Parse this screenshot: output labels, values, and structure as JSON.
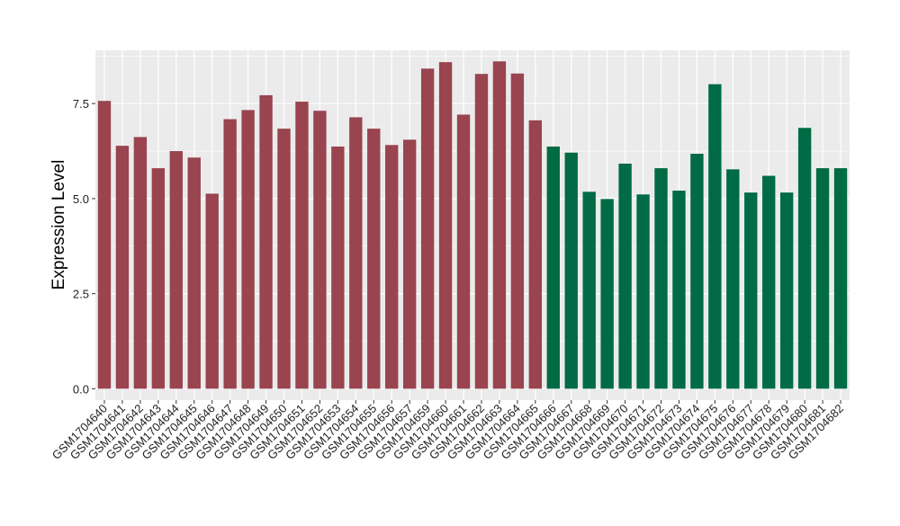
{
  "chart_data": {
    "type": "bar",
    "title": "",
    "xlabel": "",
    "ylabel": "Expression Level",
    "ylim": [
      -0.3,
      8.9
    ],
    "yticks": [
      0.0,
      2.5,
      5.0,
      7.5
    ],
    "ytick_labels": [
      "0.0",
      "2.5",
      "5.0",
      "7.5"
    ],
    "grid": true,
    "legend": "none",
    "categories": [
      "GSM1704640",
      "GSM1704641",
      "GSM1704642",
      "GSM1704643",
      "GSM1704644",
      "GSM1704645",
      "GSM1704646",
      "GSM1704647",
      "GSM1704648",
      "GSM1704649",
      "GSM1704650",
      "GSM1704651",
      "GSM1704652",
      "GSM1704653",
      "GSM1704654",
      "GSM1704655",
      "GSM1704656",
      "GSM1704657",
      "GSM1704659",
      "GSM1704660",
      "GSM1704661",
      "GSM1704662",
      "GSM1704663",
      "GSM1704664",
      "GSM1704665",
      "GSM1704666",
      "GSM1704667",
      "GSM1704668",
      "GSM1704669",
      "GSM1704670",
      "GSM1704671",
      "GSM1704672",
      "GSM1704673",
      "GSM1704674",
      "GSM1704675",
      "GSM1704676",
      "GSM1704677",
      "GSM1704678",
      "GSM1704679",
      "GSM1704680",
      "GSM1704681",
      "GSM1704682"
    ],
    "values": [
      7.57,
      6.39,
      6.62,
      5.8,
      6.25,
      6.08,
      5.13,
      7.09,
      7.33,
      7.72,
      6.84,
      7.55,
      7.31,
      6.37,
      7.14,
      6.84,
      6.41,
      6.55,
      8.42,
      8.59,
      7.21,
      8.28,
      8.61,
      8.29,
      7.06,
      6.37,
      6.21,
      5.18,
      4.99,
      5.92,
      5.11,
      5.8,
      5.21,
      6.18,
      8.01,
      5.77,
      5.16,
      5.6,
      5.16,
      6.86,
      5.8,
      5.8
    ],
    "bar_colors": [
      "#99444f",
      "#99444f",
      "#99444f",
      "#99444f",
      "#99444f",
      "#99444f",
      "#99444f",
      "#99444f",
      "#99444f",
      "#99444f",
      "#99444f",
      "#99444f",
      "#99444f",
      "#99444f",
      "#99444f",
      "#99444f",
      "#99444f",
      "#99444f",
      "#99444f",
      "#99444f",
      "#99444f",
      "#99444f",
      "#99444f",
      "#99444f",
      "#99444f",
      "#006b45",
      "#006b45",
      "#006b45",
      "#006b45",
      "#006b45",
      "#006b45",
      "#006b45",
      "#006b45",
      "#006b45",
      "#006b45",
      "#006b45",
      "#006b45",
      "#006b45",
      "#006b45",
      "#006b45",
      "#006b45",
      "#006b45"
    ],
    "panel_background": "#ebebeb",
    "grid_color": "#ffffff"
  }
}
